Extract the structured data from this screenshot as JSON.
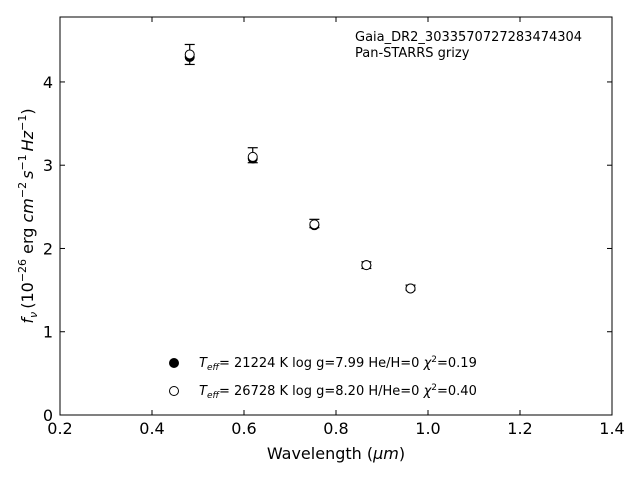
{
  "chart_data": {
    "type": "scatter",
    "xlabel_base": "Wavelength (",
    "xlabel_unit": "μm",
    "xlabel_close": ")",
    "ylabel": {
      "f": "f",
      "sub": "ν",
      "open": "(10",
      "exp1": "−26",
      "erg": " erg ",
      "cm": "cm",
      "exp2": "−2",
      "s": "s",
      "exp3": "−1",
      "hz": "Hz",
      "exp4": "−1",
      "close": ")"
    },
    "xlim": [
      0.2,
      1.4
    ],
    "ylim": [
      0,
      4.78
    ],
    "xticks": [
      "0.2",
      "0.4",
      "0.6",
      "0.8",
      "1.0",
      "1.2",
      "1.4"
    ],
    "xtick_values": [
      0.2,
      0.4,
      0.6,
      0.8,
      1.0,
      1.2,
      1.4
    ],
    "yticks": [
      "0",
      "1",
      "2",
      "3",
      "4"
    ],
    "ytick_values": [
      0,
      1,
      2,
      3,
      4
    ],
    "grid": false,
    "annotation_lines": [
      "Gaia_DR2_3033570727283474304",
      "Pan-STARRS grizy"
    ],
    "observed": {
      "x": [
        0.482,
        0.619,
        0.753,
        0.866,
        0.962
      ],
      "y": [
        4.33,
        3.12,
        2.3,
        1.8,
        1.53
      ],
      "yerr": [
        0.12,
        0.09,
        0.05,
        0.04,
        0.03
      ]
    },
    "series": [
      {
        "marker": "filled",
        "x": [
          0.482,
          0.619,
          0.753,
          0.866,
          0.962
        ],
        "y": [
          4.3,
          3.08,
          2.28,
          1.8,
          1.52
        ],
        "legend": {
          "teff": "T",
          "teff_sub": "eff",
          "text": "= 21224 K  log g=7.99  He/H=0  ",
          "chi": "χ",
          "chi_sup": "2",
          "chi_val": "=0.19"
        }
      },
      {
        "marker": "open",
        "x": [
          0.482,
          0.619,
          0.753,
          0.866,
          0.962
        ],
        "y": [
          4.33,
          3.1,
          2.29,
          1.8,
          1.52
        ],
        "legend": {
          "teff": "T",
          "teff_sub": "eff",
          "text": "= 26728 K  log g=8.20  H/He=0  ",
          "chi": "χ",
          "chi_sup": "2",
          "chi_val": "=0.40"
        }
      }
    ],
    "legend_position": "lower-center",
    "colors": {
      "marker": "#000000",
      "axis": "#000000"
    }
  }
}
